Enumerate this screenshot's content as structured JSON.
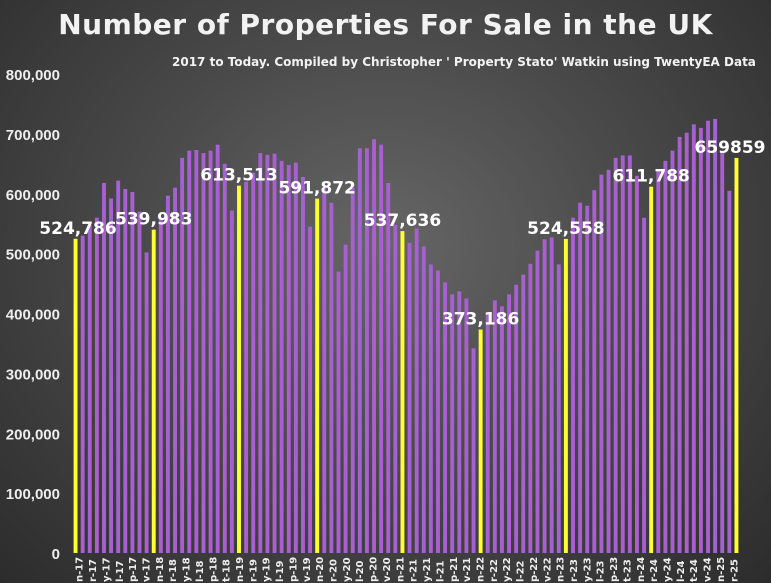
{
  "title": "Number of Properties For Sale in the UK",
  "subtitle": "2017 to Today. Compiled by Christopher ' Property Stato' Watkin using TwentyEA Data",
  "colors": {
    "bar": "#a660d0",
    "highlight": "#ffff33",
    "axis_text": "#eeeeee",
    "label_text": "#ffffff"
  },
  "chart_data": {
    "type": "bar",
    "title": "Number of Properties For Sale in the UK",
    "subtitle": "2017 to Today. Compiled by Christopher ' Property Stato' Watkin using TwentyEA Data",
    "xlabel": "",
    "ylabel": "",
    "ylim": [
      0,
      800000
    ],
    "yticks": [
      0,
      100000,
      200000,
      300000,
      400000,
      500000,
      600000,
      700000,
      800000
    ],
    "ytick_labels": [
      "0",
      "100,000",
      "200,000",
      "300,000",
      "400,000",
      "500,000",
      "600,000",
      "700,000",
      "800,000"
    ],
    "xtick_labels": [
      "n-17",
      "r-17",
      "y-17",
      "l-17",
      "p-17",
      "v-17",
      "n-18",
      "r-18",
      "y-18",
      "l-18",
      "p-18",
      "t-18",
      "n-19",
      "r-19",
      "y-19",
      "l-19",
      "p-19",
      "v-19",
      "n-20",
      "r-20",
      "y-20",
      "l-20",
      "p-20",
      "v-20",
      "n-21",
      "r-21",
      "y-21",
      "l-21",
      "p-21",
      "v-21",
      "n-22",
      "r-22",
      "y-22",
      "l-22",
      "p-22",
      "v-22",
      "n-23",
      "r-23",
      "y-23",
      "l-23",
      "p-23",
      "t-23",
      "n-24",
      "r-24",
      "y-24",
      "l-24",
      "t-24",
      "v-24",
      "n-25",
      "r-25"
    ],
    "grid": false,
    "legend": "none",
    "values": [
      524786,
      530000,
      548000,
      560000,
      618000,
      592000,
      622000,
      608000,
      603000,
      570000,
      502000,
      539983,
      558000,
      597000,
      610000,
      660000,
      672000,
      673000,
      668000,
      672000,
      682000,
      650000,
      572000,
      613513,
      620000,
      635000,
      668000,
      665000,
      667000,
      655000,
      648000,
      652000,
      628000,
      545000,
      591872,
      610000,
      585000,
      470000,
      515000,
      610000,
      676000,
      676000,
      691000,
      682000,
      618000,
      548000,
      537636,
      518000,
      542000,
      512000,
      482000,
      472000,
      452000,
      432000,
      437000,
      425000,
      342000,
      373186,
      402000,
      422000,
      412000,
      432000,
      448000,
      465000,
      483000,
      505000,
      524000,
      527000,
      482000,
      524558,
      560000,
      585000,
      580000,
      606000,
      632000,
      640000,
      660000,
      664000,
      664000,
      630000,
      560000,
      611788,
      640000,
      655000,
      672000,
      695000,
      702000,
      716000,
      710000,
      722000,
      725000,
      670000,
      605000,
      659859
    ],
    "highlight_indices": [
      0,
      11,
      23,
      34,
      46,
      57,
      69,
      81,
      93
    ],
    "data_labels": [
      {
        "index": 0,
        "text": "524,786"
      },
      {
        "index": 11,
        "text": "539,983"
      },
      {
        "index": 23,
        "text": "613,513"
      },
      {
        "index": 34,
        "text": "591,872"
      },
      {
        "index": 46,
        "text": "537,636"
      },
      {
        "index": 57,
        "text": "373,186"
      },
      {
        "index": 69,
        "text": "524,558"
      },
      {
        "index": 81,
        "text": "611,788"
      },
      {
        "index": 93,
        "text": "659859"
      }
    ]
  }
}
